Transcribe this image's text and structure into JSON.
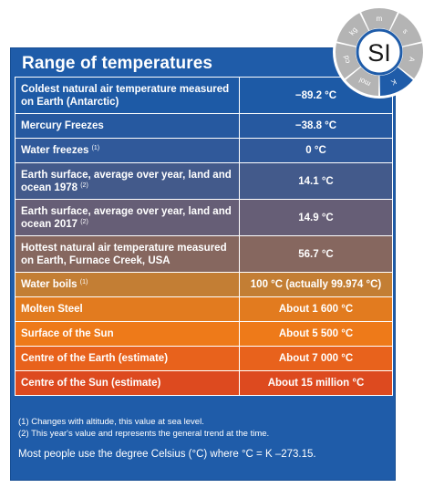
{
  "title": "Range of temperatures",
  "rows": [
    {
      "label": "Coldest natural air temperature measured on Earth (Antarctic)",
      "note": "",
      "value": "−89.2 °C",
      "color": "#1d5aa6"
    },
    {
      "label": "Mercury Freezes",
      "note": "",
      "value": "−38.8 °C",
      "color": "#2659a0"
    },
    {
      "label": "Water freezes",
      "note": "(1)",
      "value": "0 °C",
      "color": "#30599a"
    },
    {
      "label": "Earth surface, average over year, land and ocean 1978",
      "note": "(2)",
      "value": "14.1 °C",
      "color": "#435a8b"
    },
    {
      "label": "Earth surface, average over year, land and ocean 2017",
      "note": "(2)",
      "value": "14.9 °C",
      "color": "#665e76"
    },
    {
      "label": "Hottest natural air temperature measured on Earth, Furnace Creek, USA",
      "note": "",
      "value": "56.7 °C",
      "color": "#86675f"
    },
    {
      "label": "Water boils",
      "note": "(1)",
      "value": "100 °C (actually 99.974 °C)",
      "color": "#c37e34"
    },
    {
      "label": "Molten Steel",
      "note": "",
      "value": "About 1 600 °C",
      "color": "#e27b1f"
    },
    {
      "label": "Surface of the Sun",
      "note": "",
      "value": "About 5 500 °C",
      "color": "#ee7a19"
    },
    {
      "label": "Centre of the Earth (estimate)",
      "note": "",
      "value": "About 7 000 °C",
      "color": "#e8621c"
    },
    {
      "label": "Centre of the Sun (estimate)",
      "note": "",
      "value": "About 15 million °C",
      "color": "#dd4a1f"
    }
  ],
  "notes": [
    "(1) Changes with altitude, this value at sea level.",
    "(2) This year's value and represents the general trend at the time."
  ],
  "summary": "Most people use the degree Celsius (°C) where °C = K –273.15.",
  "si_badge": {
    "center": "SI",
    "units": [
      "kg",
      "m",
      "s",
      "A",
      "K",
      "mol",
      "cd"
    ],
    "highlighted": "K",
    "colors": {
      "ring": "#b4b4b4",
      "highlight": "#1f5ca9",
      "center_border": "#1f5ca9"
    }
  }
}
